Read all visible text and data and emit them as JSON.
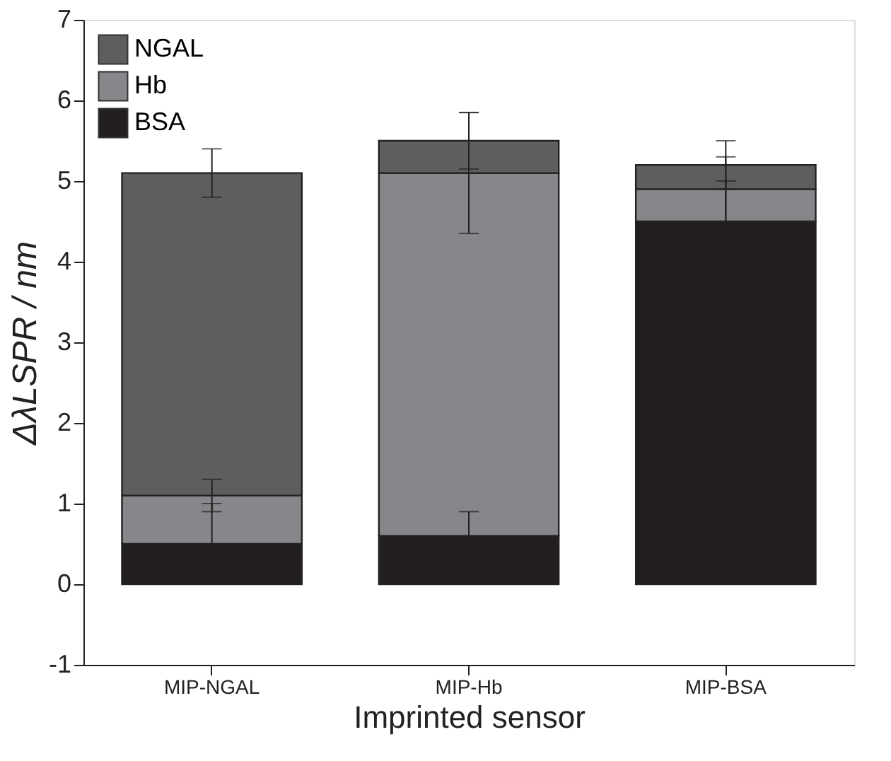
{
  "chart_data": {
    "type": "bar",
    "stacked": true,
    "xlabel": "Imprinted sensor",
    "ylabel": "ΔλLSPR / nm",
    "categories": [
      "MIP-NGAL",
      "MIP-Hb",
      "MIP-BSA"
    ],
    "series": [
      {
        "name": "BSA",
        "color": "#231f20",
        "values": [
          0.5,
          0.6,
          4.5
        ],
        "errors": [
          0.5,
          0.3,
          0.5
        ]
      },
      {
        "name": "Hb",
        "color": "#86878a",
        "values": [
          0.6,
          4.5,
          0.4
        ],
        "errors": [
          0.2,
          0.75,
          0.4
        ]
      },
      {
        "name": "NGAL",
        "color": "#5e5e60",
        "values": [
          4.0,
          0.4,
          0.3
        ],
        "errors": [
          0.3,
          0.35,
          0.3
        ]
      }
    ],
    "ylim": [
      -1,
      7
    ],
    "yticks": [
      -1,
      0,
      1,
      2,
      3,
      4,
      5,
      6,
      7
    ],
    "grid": false,
    "legend": "top left"
  }
}
